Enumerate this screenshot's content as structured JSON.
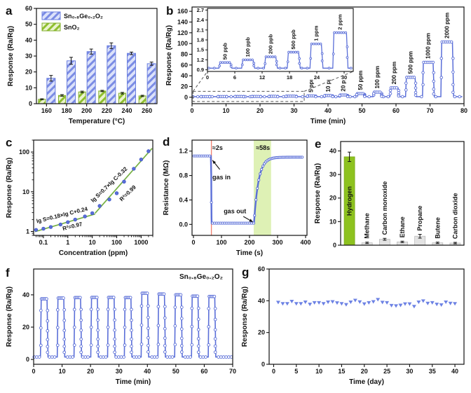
{
  "colors": {
    "blue_line": "#5b6fd8",
    "blue_dark": "#4157c9",
    "bar_blue_bg": "#dce2fa",
    "bar_blue_stripe": "#7b8ce4",
    "bar_blue_edge": "#6b7fe0",
    "bar_green_bg": "#e9f3cd",
    "bar_green_stripe": "#8fbf2f",
    "bar_green_edge": "#7fae2a",
    "hydrogen_green": "#8dc21f",
    "gray_bar": "#e3e3e3",
    "fit_green": "#76b043",
    "band_green": "#def1b5",
    "red_line": "#f08070",
    "axis": "#111111",
    "marker_fill": "#ffffff",
    "triangle": "#6d82e4"
  },
  "chart_data": [
    {
      "panel_label": "a",
      "type": "bar",
      "xlabel": "Temperature (°C)",
      "ylabel": "Response (Ra/Rg)",
      "ylim": [
        0,
        60
      ],
      "yticks": [
        0,
        10,
        20,
        30,
        40,
        50,
        60
      ],
      "categories": [
        "160",
        "180",
        "200",
        "220",
        "240",
        "260"
      ],
      "series": [
        {
          "name": "Sn₀.₈Ge₀.₂O₂",
          "style": "hatch-blue",
          "values": [
            16,
            27,
            32.8,
            36.5,
            31.7,
            25.2
          ],
          "errors": [
            1.8,
            2.2,
            1.6,
            1.8,
            0.8,
            1.0
          ]
        },
        {
          "name": "SnO₂",
          "style": "hatch-green",
          "values": [
            2.8,
            5.2,
            7.4,
            8.0,
            6.6,
            4.9
          ],
          "errors": [
            0.3,
            0.5,
            0.5,
            0.4,
            0.5,
            0.4
          ]
        }
      ]
    },
    {
      "panel_label": "b",
      "type": "line",
      "xlabel": "Time (min)",
      "ylabel": "Response (Ra/Rg)",
      "xlim": [
        0,
        80
      ],
      "xticks": [
        0,
        10,
        20,
        30,
        40,
        50,
        60,
        70,
        80
      ],
      "ylim": [
        -12,
        168
      ],
      "yticks": [
        0,
        20,
        40,
        60,
        80,
        100,
        120,
        140,
        160
      ],
      "baseline": 1,
      "pulses": [
        {
          "label": "",
          "t0": 2.5,
          "t1": 5,
          "h": 1.12
        },
        {
          "label": "",
          "t0": 7.5,
          "t1": 10,
          "h": 1.2
        },
        {
          "label": "",
          "t0": 12.5,
          "t1": 15,
          "h": 1.29
        },
        {
          "label": "",
          "t0": 17.5,
          "t1": 20,
          "h": 1.43
        },
        {
          "label": "",
          "t0": 22.5,
          "t1": 25,
          "h": 1.68
        },
        {
          "label": "",
          "t0": 27.5,
          "t1": 30.5,
          "h": 2.02
        },
        {
          "label": "5 ppm",
          "t0": 33.8,
          "t1": 36.2,
          "h": 2.5
        },
        {
          "label": "10 ppm",
          "t0": 38.8,
          "t1": 41.2,
          "h": 3.1
        },
        {
          "label": "20 ppm",
          "t0": 43.3,
          "t1": 45.6,
          "h": 4.2
        },
        {
          "label": "50 ppm",
          "t0": 48.3,
          "t1": 50.6,
          "h": 6.8
        },
        {
          "label": "100 ppm",
          "t0": 53.3,
          "t1": 55.6,
          "h": 9.5
        },
        {
          "label": "200 ppm",
          "t0": 58.2,
          "t1": 60.6,
          "h": 17.5
        },
        {
          "label": "500 ppm",
          "t0": 62.8,
          "t1": 65.6,
          "h": 37
        },
        {
          "label": "1000 ppm",
          "t0": 67.8,
          "t1": 70.9,
          "h": 65
        },
        {
          "label": "2000 ppm",
          "t0": 73.2,
          "t1": 76.6,
          "h": 103
        }
      ],
      "zoom_box": {
        "t0": 0.3,
        "t1": 33,
        "v0": -8,
        "v1": 11
      },
      "inset": {
        "xlim": [
          0,
          32
        ],
        "xticks": [
          0,
          6,
          12,
          18,
          24,
          30
        ],
        "ylim": [
          0.85,
          2.75
        ],
        "yticks": [
          0.9,
          1.2,
          1.5,
          1.8,
          2.1,
          2.4,
          2.7
        ],
        "baseline": 0.95,
        "pulses": [
          {
            "label": "50 ppb",
            "t0": 2.5,
            "t1": 5,
            "h": 1.12
          },
          {
            "label": "100 ppb",
            "t0": 7.5,
            "t1": 10,
            "h": 1.2
          },
          {
            "label": "200 ppb",
            "t0": 12.5,
            "t1": 15,
            "h": 1.29
          },
          {
            "label": "500 ppb",
            "t0": 17.5,
            "t1": 20,
            "h": 1.43
          },
          {
            "label": "1 ppm",
            "t0": 22.5,
            "t1": 25,
            "h": 1.68
          },
          {
            "label": "2 ppm",
            "t0": 27.5,
            "t1": 30.5,
            "h": 2.02
          }
        ]
      }
    },
    {
      "panel_label": "c",
      "type": "scatter",
      "xlabel": "Concentration (ppm)",
      "ylabel": "Response (Ra/Rg)",
      "xticks_major": [
        0.1,
        1,
        10,
        100,
        1000
      ],
      "yticks_major": [
        1,
        10,
        100
      ],
      "points": [
        [
          0.05,
          1.1
        ],
        [
          0.1,
          1.18
        ],
        [
          0.2,
          1.3
        ],
        [
          0.5,
          1.5
        ],
        [
          1,
          1.72
        ],
        [
          2,
          2.0
        ],
        [
          5,
          2.4
        ],
        [
          10,
          2.9
        ],
        [
          20,
          4.4
        ],
        [
          50,
          6.4
        ],
        [
          100,
          9.2
        ],
        [
          200,
          18
        ],
        [
          500,
          38
        ],
        [
          1000,
          65
        ],
        [
          2000,
          105
        ]
      ],
      "fits": [
        {
          "equation": "lg S=0.18×lg C+0.24",
          "r2": "R²=0.97",
          "slope": 0.18,
          "intercept": 0.24,
          "c0": 0.045,
          "c1": 13
        },
        {
          "equation": "lg S=0.7×lg C-0.32",
          "r2": "R²=0.99",
          "slope": 0.7,
          "intercept": -0.32,
          "c0": 13,
          "c1": 2800
        }
      ],
      "annotations": [
        {
          "text": "lg S=0.18×lg C+0.24",
          "c": 0.6,
          "s": 2.35,
          "rot": -14
        },
        {
          "text": "R²=0.97",
          "c": 1.6,
          "s": 1.22,
          "rot": -14
        },
        {
          "text": "lg S=0.7×lg C-0.32",
          "c": 55,
          "s": 14,
          "rot": -44
        },
        {
          "text": "R²=0.99",
          "c": 320,
          "s": 8.5,
          "rot": -44
        }
      ]
    },
    {
      "panel_label": "d",
      "type": "line",
      "xlabel": "Time (s)",
      "ylabel": "Resistance (MΩ)",
      "xticks": [
        0,
        100,
        200,
        300,
        400
      ],
      "ytick_labels": [
        "0.0",
        "0.4",
        "0.8",
        "1.2"
      ],
      "yticks": [
        0,
        0.4,
        0.8,
        1.2
      ],
      "r_air": 1.12,
      "r_gas": 0.02,
      "t_gas_in": 64,
      "t_gas_out": 216,
      "recovery_tau": 16,
      "t_end": 388,
      "band": [
        215,
        277
      ],
      "red_line_t": 64,
      "annotations": [
        {
          "text": "≈2s",
          "t": 86,
          "v": 1.22
        },
        {
          "text": "gas in",
          "t": 100,
          "v": 0.74
        },
        {
          "text": "gas out",
          "t": 148,
          "v": 0.18
        },
        {
          "text": "≈58s",
          "t": 248,
          "v": 1.22
        }
      ],
      "arrows": [
        {
          "x1": 94,
          "y1": 0.9,
          "x2": 68,
          "y2": 1.05
        },
        {
          "x1": 178,
          "y1": 0.13,
          "x2": 212,
          "y2": 0.04
        }
      ]
    },
    {
      "panel_label": "e",
      "type": "bar",
      "ylabel": "Response (Ra/Rg)",
      "ylim": [
        0,
        44
      ],
      "yticks": [
        0,
        10,
        20,
        30,
        40
      ],
      "categories": [
        "Hydrogen",
        "Methane",
        "Carbon monoxide",
        "Ethane",
        "Propane",
        "Butene",
        "Carbon dioxide"
      ],
      "values": [
        37.5,
        1.0,
        2.5,
        1.4,
        3.8,
        1.0,
        0.9
      ],
      "errors": [
        2.0,
        0.3,
        0.4,
        0.3,
        0.8,
        0.3,
        0.3
      ]
    },
    {
      "panel_label": "f",
      "type": "line",
      "xlabel": "Time (min)",
      "ylabel": "Response (Ra/Rg)",
      "xlim": [
        0,
        70
      ],
      "xticks": [
        0,
        10,
        20,
        30,
        40,
        50,
        60,
        70
      ],
      "ylim": [
        -3,
        56
      ],
      "yticks": [
        0,
        20,
        40
      ],
      "baseline": 1.5,
      "material_label": "Sn₀.₈Ge₀.₂O₂",
      "pulses": [
        {
          "t0": 2.4,
          "t1": 4.7,
          "h": 37.5
        },
        {
          "t0": 8.3,
          "t1": 10.6,
          "h": 38
        },
        {
          "t0": 14.2,
          "t1": 16.5,
          "h": 38.3
        },
        {
          "t0": 20.1,
          "t1": 22.4,
          "h": 38.4
        },
        {
          "t0": 26.0,
          "t1": 28.3,
          "h": 38.4
        },
        {
          "t0": 31.9,
          "t1": 34.2,
          "h": 38.3
        },
        {
          "t0": 37.8,
          "t1": 40.1,
          "h": 41
        },
        {
          "t0": 43.7,
          "t1": 46.0,
          "h": 40.5
        },
        {
          "t0": 49.6,
          "t1": 51.9,
          "h": 40
        },
        {
          "t0": 55.5,
          "t1": 57.8,
          "h": 39.2
        },
        {
          "t0": 61.4,
          "t1": 63.7,
          "h": 39
        }
      ]
    },
    {
      "panel_label": "g",
      "type": "scatter",
      "xlabel": "Time (day)",
      "ylabel": "Response (Ra/Rg)",
      "xticks": [
        0,
        5,
        10,
        15,
        20,
        25,
        30,
        35,
        40
      ],
      "ylim": [
        0,
        60
      ],
      "yticks": [
        0,
        20,
        40,
        60
      ],
      "days": [
        1,
        2,
        3,
        4,
        5,
        6,
        7,
        8,
        9,
        10,
        11,
        12,
        13,
        14,
        15,
        16,
        17,
        18,
        19,
        20,
        21,
        22,
        23,
        24,
        25,
        26,
        27,
        28,
        29,
        30,
        31,
        32,
        33,
        34,
        35,
        36,
        37,
        38,
        39,
        40
      ],
      "values": [
        39.0,
        38.2,
        38.2,
        39.6,
        38.2,
        38.2,
        39.2,
        37.8,
        38.8,
        38.8,
        38.2,
        39.2,
        39.4,
        38.7,
        38.2,
        37.6,
        39.2,
        40.3,
        39.3,
        38.0,
        38.8,
        39.4,
        40.8,
        39.0,
        38.8,
        37.0,
        36.8,
        37.2,
        38.0,
        38.0,
        36.4,
        39.2,
        39.9,
        38.4,
        38.8,
        37.8,
        37.4,
        39.2,
        38.4,
        38.2
      ]
    }
  ]
}
